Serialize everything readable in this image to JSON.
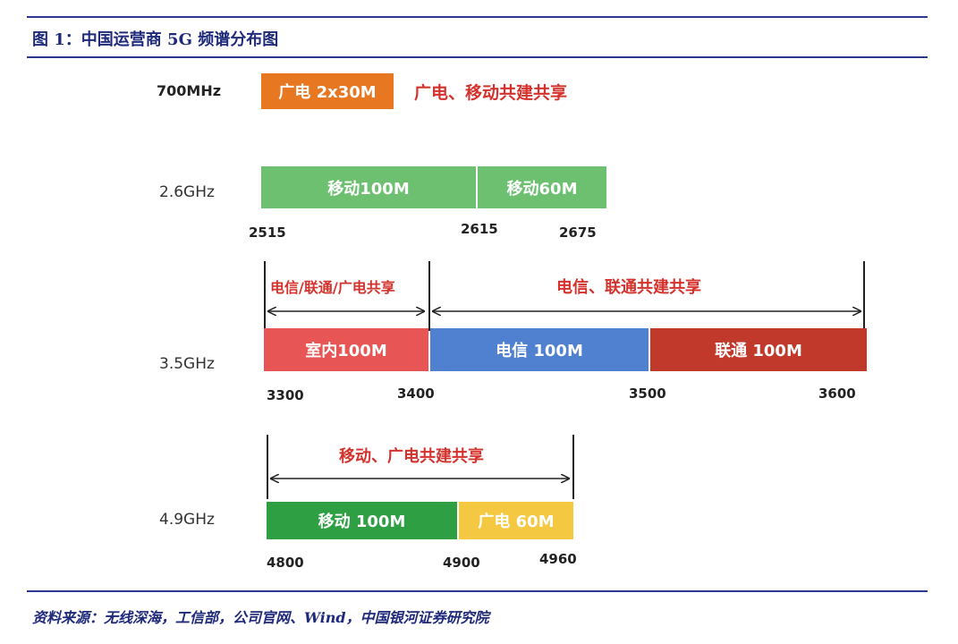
{
  "title": "图 1：中国运营商 5G 频谱分布图",
  "source": "资料来源：无线深海，工信部，公司官网、Wind，中国银河证券研究院",
  "colors": {
    "accent": "#2b3990",
    "orange": "#e87722",
    "light_green": "#6cc070",
    "red": "#e85555",
    "blue": "#4f81d0",
    "dark_red": "#c0392b",
    "green": "#2ea043",
    "yellow": "#f5c842",
    "note_red": "#d4322c"
  },
  "rows": {
    "r700": {
      "band_label": "700MHz",
      "block": "广电 2x30M",
      "note": "广电、移动共建共享"
    },
    "r26": {
      "band_label": "2.6GHz",
      "blocks": [
        "移动100M",
        "移动60M"
      ],
      "ticks": [
        "2515",
        "2615",
        "2675"
      ]
    },
    "r35": {
      "band_label": "3.5GHz",
      "notes": [
        "电信/联通/广电共享",
        "电信、联通共建共享"
      ],
      "blocks": [
        "室内100M",
        "电信 100M",
        "联通 100M"
      ],
      "ticks": [
        "3300",
        "3400",
        "3500",
        "3600"
      ]
    },
    "r49": {
      "band_label": "4.9GHz",
      "note": "移动、广电共建共享",
      "blocks": [
        "移动 100M",
        "广电 60M"
      ],
      "ticks": [
        "4800",
        "4900",
        "4960"
      ]
    }
  }
}
